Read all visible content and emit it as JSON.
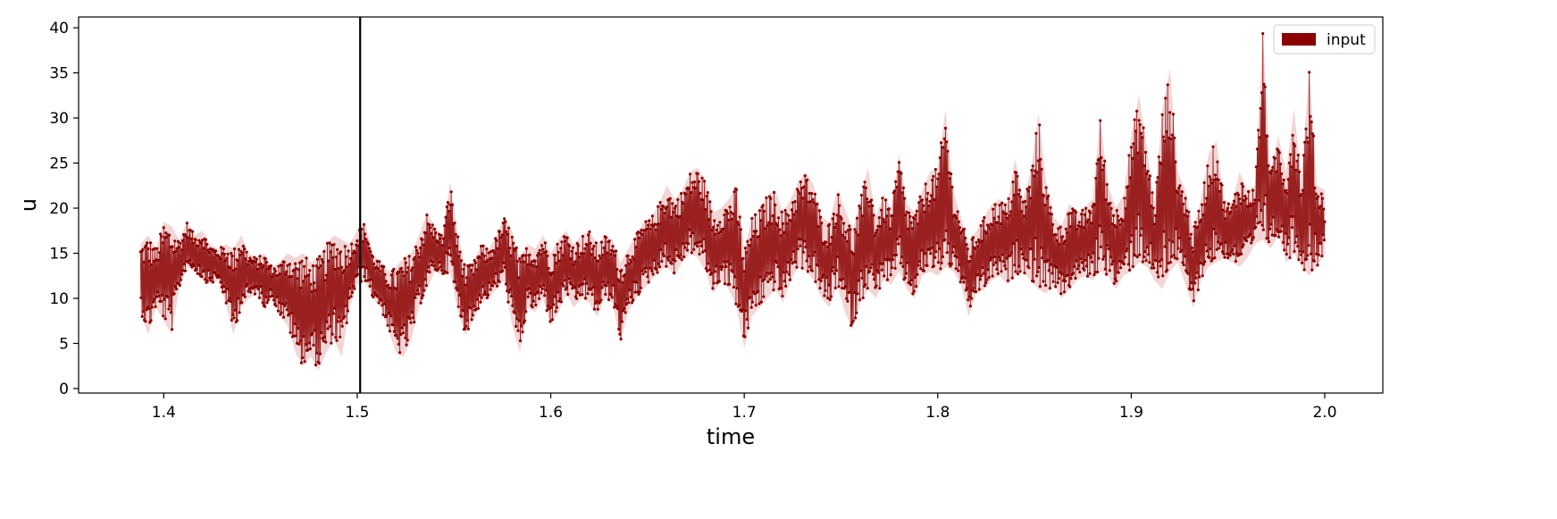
{
  "chart_data": {
    "type": "line",
    "title": "",
    "xlabel": "time",
    "ylabel": "u",
    "xlim": [
      1.356,
      2.03
    ],
    "ylim": [
      -0.5,
      41.2
    ],
    "xticks": [
      1.4,
      1.5,
      1.6,
      1.7,
      1.8,
      1.9,
      2.0
    ],
    "xtick_labels": [
      "1.4",
      "1.5",
      "1.6",
      "1.7",
      "1.8",
      "1.9",
      "2.0"
    ],
    "yticks": [
      0,
      5,
      10,
      15,
      20,
      25,
      30,
      35,
      40
    ],
    "ytick_labels": [
      "0",
      "5",
      "10",
      "15",
      "20",
      "25",
      "30",
      "35",
      "40"
    ],
    "grid": false,
    "legend": {
      "position": "top-right",
      "entries": [
        "input"
      ]
    },
    "vline_x": 1.5015,
    "colors": {
      "series": "#8b0000",
      "fill": "#e8b4b4",
      "vline": "#000000",
      "axes": "#000000"
    },
    "series": [
      {
        "name": "input",
        "x": [
          1.388,
          1.392,
          1.396,
          1.4,
          1.404,
          1.408,
          1.412,
          1.416,
          1.42,
          1.424,
          1.428,
          1.432,
          1.436,
          1.44,
          1.444,
          1.448,
          1.452,
          1.456,
          1.46,
          1.464,
          1.468,
          1.472,
          1.476,
          1.48,
          1.484,
          1.488,
          1.492,
          1.496,
          1.5,
          1.504,
          1.508,
          1.512,
          1.516,
          1.52,
          1.524,
          1.528,
          1.532,
          1.536,
          1.54,
          1.544,
          1.548,
          1.552,
          1.556,
          1.56,
          1.564,
          1.568,
          1.572,
          1.576,
          1.58,
          1.584,
          1.588,
          1.592,
          1.596,
          1.6,
          1.604,
          1.608,
          1.612,
          1.616,
          1.62,
          1.624,
          1.628,
          1.632,
          1.636,
          1.64,
          1.644,
          1.648,
          1.652,
          1.656,
          1.66,
          1.664,
          1.668,
          1.672,
          1.676,
          1.68,
          1.684,
          1.688,
          1.692,
          1.696,
          1.7,
          1.704,
          1.708,
          1.712,
          1.716,
          1.72,
          1.724,
          1.728,
          1.732,
          1.736,
          1.74,
          1.744,
          1.748,
          1.752,
          1.756,
          1.76,
          1.764,
          1.768,
          1.772,
          1.776,
          1.78,
          1.784,
          1.788,
          1.792,
          1.796,
          1.8,
          1.804,
          1.808,
          1.812,
          1.816,
          1.82,
          1.824,
          1.828,
          1.832,
          1.836,
          1.84,
          1.844,
          1.848,
          1.852,
          1.856,
          1.86,
          1.864,
          1.868,
          1.872,
          1.876,
          1.88,
          1.884,
          1.888,
          1.892,
          1.896,
          1.9,
          1.904,
          1.908,
          1.912,
          1.916,
          1.92,
          1.924,
          1.928,
          1.932,
          1.936,
          1.94,
          1.944,
          1.948,
          1.952,
          1.956,
          1.96,
          1.964,
          1.968,
          1.972,
          1.976,
          1.98,
          1.984,
          1.988,
          1.992,
          1.996,
          2.0
        ],
        "low": [
          8.5,
          6.0,
          9.0,
          7.5,
          6.0,
          11.0,
          13.5,
          13.0,
          12.0,
          11.5,
          12.0,
          9.5,
          6.0,
          9.0,
          10.0,
          10.5,
          9.0,
          10.0,
          8.0,
          7.0,
          4.0,
          2.5,
          3.5,
          2.0,
          4.0,
          5.5,
          3.5,
          9.0,
          11.5,
          12.0,
          10.0,
          9.0,
          6.5,
          4.0,
          3.5,
          5.5,
          9.0,
          11.0,
          13.0,
          12.5,
          13.0,
          8.5,
          6.0,
          7.5,
          9.5,
          10.0,
          11.0,
          12.0,
          7.0,
          4.0,
          9.0,
          8.5,
          10.0,
          7.0,
          8.5,
          10.5,
          9.0,
          10.0,
          9.5,
          8.0,
          10.0,
          9.5,
          5.0,
          8.5,
          10.0,
          11.0,
          12.0,
          13.0,
          13.5,
          12.5,
          14.0,
          15.0,
          14.5,
          13.0,
          10.5,
          12.0,
          11.0,
          9.0,
          4.5,
          8.0,
          9.0,
          10.0,
          11.0,
          9.5,
          12.0,
          13.5,
          13.0,
          12.0,
          10.0,
          9.0,
          11.5,
          8.5,
          6.5,
          9.5,
          11.0,
          10.0,
          12.0,
          11.5,
          13.0,
          11.0,
          10.0,
          12.5,
          13.0,
          12.5,
          13.5,
          13.0,
          11.5,
          8.0,
          10.5,
          11.0,
          12.0,
          12.5,
          11.5,
          12.5,
          13.0,
          12.0,
          11.0,
          10.5,
          11.5,
          10.0,
          11.0,
          12.0,
          12.5,
          12.0,
          13.0,
          12.5,
          11.0,
          12.5,
          13.0,
          14.0,
          13.5,
          12.0,
          11.0,
          13.0,
          14.0,
          11.5,
          9.0,
          12.0,
          13.5,
          14.0,
          14.5,
          14.0,
          13.5,
          14.5,
          16.0,
          16.5,
          15.5,
          17.0,
          14.0,
          15.0,
          13.5,
          12.5,
          13.5,
          15.0
        ],
        "high": [
          16.0,
          17.0,
          15.5,
          18.5,
          18.0,
          16.5,
          18.5,
          17.0,
          17.5,
          16.0,
          15.5,
          16.0,
          15.5,
          17.0,
          15.0,
          14.5,
          15.0,
          13.5,
          14.0,
          15.0,
          14.5,
          15.0,
          14.0,
          14.5,
          16.0,
          17.0,
          16.5,
          16.0,
          17.5,
          18.5,
          15.0,
          14.0,
          13.0,
          13.5,
          14.5,
          15.0,
          17.0,
          19.5,
          18.0,
          17.0,
          23.0,
          17.0,
          13.5,
          14.0,
          16.0,
          15.5,
          17.0,
          19.0,
          17.5,
          14.5,
          16.0,
          15.5,
          17.0,
          15.0,
          16.5,
          17.5,
          16.0,
          17.0,
          17.5,
          16.0,
          17.0,
          16.5,
          14.0,
          15.5,
          17.0,
          18.5,
          19.0,
          20.5,
          22.5,
          21.0,
          22.0,
          24.0,
          24.5,
          23.0,
          19.5,
          20.0,
          21.0,
          22.5,
          15.5,
          19.0,
          20.0,
          21.5,
          22.0,
          19.5,
          21.0,
          23.0,
          24.0,
          22.5,
          19.0,
          18.5,
          22.0,
          20.0,
          17.5,
          21.0,
          24.5,
          19.0,
          21.5,
          20.0,
          26.0,
          20.5,
          19.5,
          22.0,
          24.0,
          24.5,
          31.0,
          22.0,
          19.0,
          16.0,
          17.5,
          19.0,
          20.5,
          21.0,
          20.5,
          25.5,
          21.0,
          24.0,
          30.5,
          23.0,
          19.0,
          18.0,
          20.5,
          19.5,
          20.0,
          21.0,
          30.0,
          22.5,
          20.0,
          21.5,
          28.0,
          32.5,
          27.0,
          20.5,
          31.0,
          35.5,
          24.0,
          22.0,
          17.5,
          21.0,
          26.0,
          27.5,
          21.0,
          20.5,
          24.0,
          22.0,
          22.5,
          39.5,
          24.0,
          28.0,
          24.0,
          31.0,
          23.5,
          35.5,
          22.5,
          22.0
        ]
      }
    ]
  }
}
